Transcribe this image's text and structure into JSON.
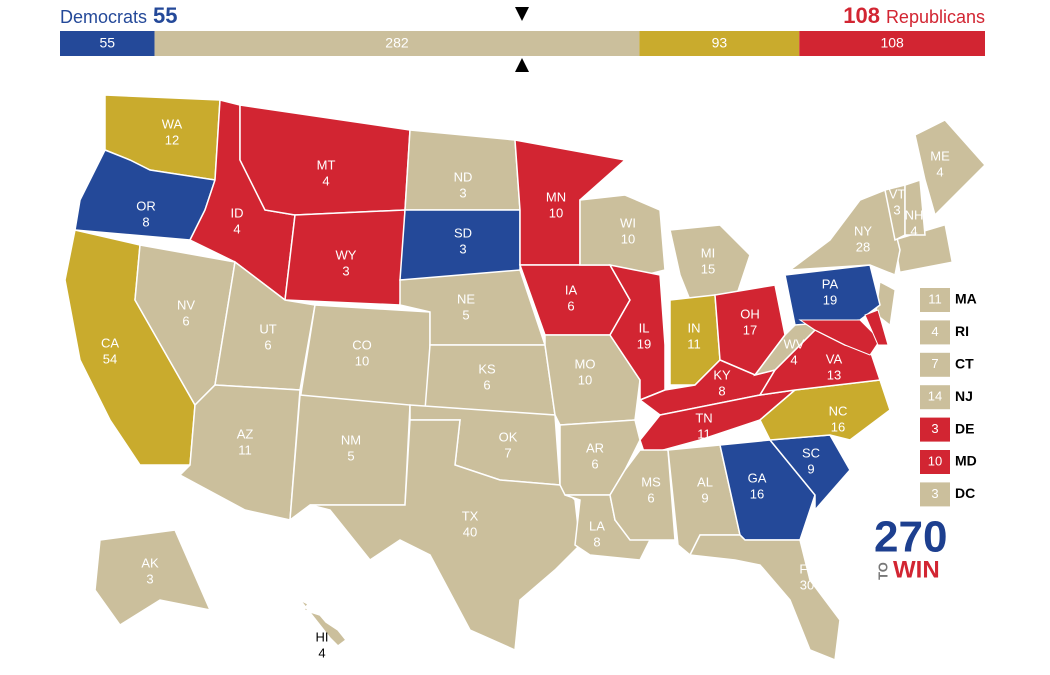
{
  "header": {
    "left_label": "Democrats",
    "right_label": "Republicans"
  },
  "bar": {
    "segments": [
      {
        "value": 55,
        "color": "#244999"
      },
      {
        "value": 282,
        "color": "#cbbf9c"
      },
      {
        "value": 93,
        "color": "#c9ab2d"
      },
      {
        "value": 108,
        "color": "#d22532"
      }
    ]
  },
  "states": [
    {
      "abbr": "WA",
      "votes": 12,
      "color": "#c9ab2d"
    },
    {
      "abbr": "OR",
      "votes": 8,
      "color": "#244999"
    },
    {
      "abbr": "CA",
      "votes": 54,
      "color": "#c9ab2d"
    },
    {
      "abbr": "NV",
      "votes": 6,
      "color": "#cbbf9c"
    },
    {
      "abbr": "ID",
      "votes": 4,
      "color": "#d22532"
    },
    {
      "abbr": "MT",
      "votes": 4,
      "color": "#d22532"
    },
    {
      "abbr": "WY",
      "votes": 3,
      "color": "#d22532"
    },
    {
      "abbr": "UT",
      "votes": 6,
      "color": "#cbbf9c"
    },
    {
      "abbr": "CO",
      "votes": 10,
      "color": "#cbbf9c"
    },
    {
      "abbr": "AZ",
      "votes": 11,
      "color": "#cbbf9c"
    },
    {
      "abbr": "NM",
      "votes": 5,
      "color": "#cbbf9c"
    },
    {
      "abbr": "ND",
      "votes": 3,
      "color": "#cbbf9c"
    },
    {
      "abbr": "SD",
      "votes": 3,
      "color": "#244999"
    },
    {
      "abbr": "NE",
      "votes": 5,
      "color": "#cbbf9c"
    },
    {
      "abbr": "KS",
      "votes": 6,
      "color": "#cbbf9c"
    },
    {
      "abbr": "OK",
      "votes": 7,
      "color": "#cbbf9c"
    },
    {
      "abbr": "TX",
      "votes": 40,
      "color": "#cbbf9c"
    },
    {
      "abbr": "MN",
      "votes": 10,
      "color": "#d22532"
    },
    {
      "abbr": "IA",
      "votes": 6,
      "color": "#d22532"
    },
    {
      "abbr": "MO",
      "votes": 10,
      "color": "#cbbf9c"
    },
    {
      "abbr": "AR",
      "votes": 6,
      "color": "#cbbf9c"
    },
    {
      "abbr": "LA",
      "votes": 8,
      "color": "#cbbf9c"
    },
    {
      "abbr": "WI",
      "votes": 10,
      "color": "#cbbf9c"
    },
    {
      "abbr": "IL",
      "votes": 19,
      "color": "#d22532"
    },
    {
      "abbr": "MI",
      "votes": 15,
      "color": "#cbbf9c"
    },
    {
      "abbr": "IN",
      "votes": 11,
      "color": "#c9ab2d"
    },
    {
      "abbr": "OH",
      "votes": 17,
      "color": "#d22532"
    },
    {
      "abbr": "KY",
      "votes": 8,
      "color": "#d22532"
    },
    {
      "abbr": "TN",
      "votes": 11,
      "color": "#d22532"
    },
    {
      "abbr": "MS",
      "votes": 6,
      "color": "#cbbf9c"
    },
    {
      "abbr": "AL",
      "votes": 9,
      "color": "#cbbf9c"
    },
    {
      "abbr": "GA",
      "votes": 16,
      "color": "#244999"
    },
    {
      "abbr": "FL",
      "votes": 30,
      "color": "#cbbf9c"
    },
    {
      "abbr": "SC",
      "votes": 9,
      "color": "#244999"
    },
    {
      "abbr": "NC",
      "votes": 16,
      "color": "#c9ab2d"
    },
    {
      "abbr": "VA",
      "votes": 13,
      "color": "#d22532"
    },
    {
      "abbr": "WV",
      "votes": 4,
      "color": "#cbbf9c"
    },
    {
      "abbr": "PA",
      "votes": 19,
      "color": "#244999"
    },
    {
      "abbr": "NY",
      "votes": 28,
      "color": "#cbbf9c"
    },
    {
      "abbr": "VT",
      "votes": 3,
      "color": "#cbbf9c"
    },
    {
      "abbr": "NH",
      "votes": 4,
      "color": "#cbbf9c"
    },
    {
      "abbr": "ME",
      "votes": 4,
      "color": "#cbbf9c"
    },
    {
      "abbr": "AK",
      "votes": 3,
      "color": "#cbbf9c"
    },
    {
      "abbr": "HI",
      "votes": 4,
      "color": "#cbbf9c"
    }
  ],
  "small_states": [
    {
      "abbr": "MA",
      "votes": 11,
      "color": "#cbbf9c"
    },
    {
      "abbr": "RI",
      "votes": 4,
      "color": "#cbbf9c"
    },
    {
      "abbr": "CT",
      "votes": 7,
      "color": "#cbbf9c"
    },
    {
      "abbr": "NJ",
      "votes": 14,
      "color": "#cbbf9c"
    },
    {
      "abbr": "DE",
      "votes": 3,
      "color": "#d22532"
    },
    {
      "abbr": "MD",
      "votes": 10,
      "color": "#d22532"
    },
    {
      "abbr": "DC",
      "votes": 3,
      "color": "#cbbf9c"
    }
  ],
  "logo": {
    "number": "270",
    "to": "TO",
    "win": "WIN"
  }
}
